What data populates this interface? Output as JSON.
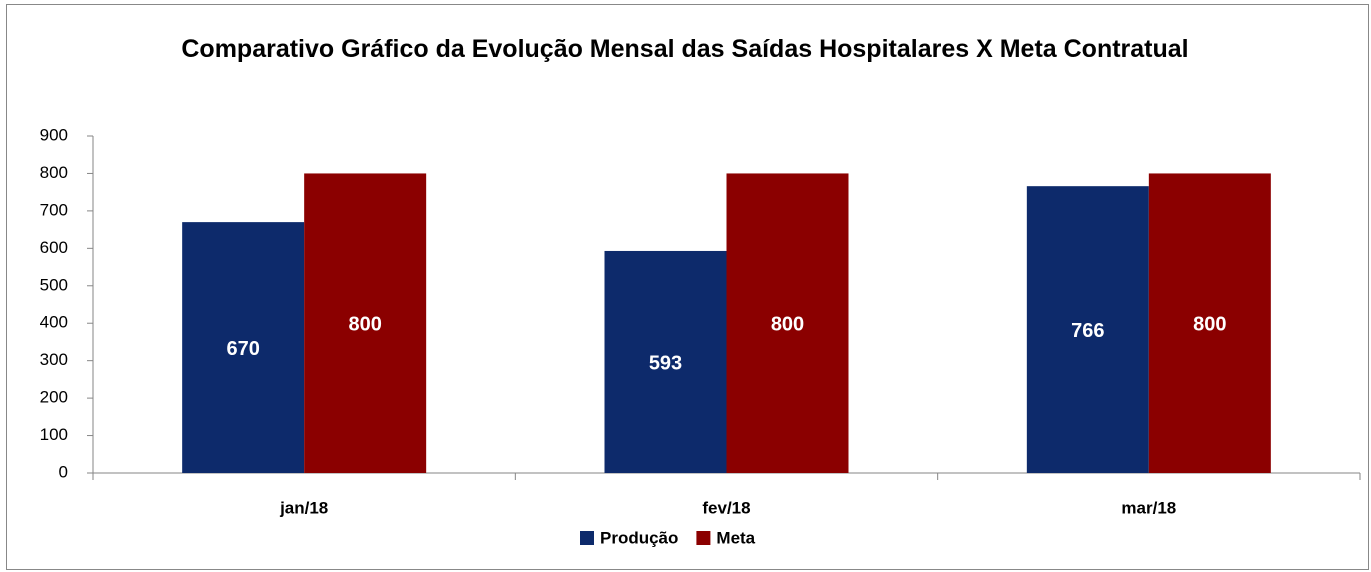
{
  "chart_data": {
    "type": "bar",
    "title": "Comparativo Gráfico da Evolução Mensal das Saídas Hospitalares X Meta Contratual",
    "categories": [
      "jan/18",
      "fev/18",
      "mar/18"
    ],
    "series": [
      {
        "name": "Produção",
        "color": "#0d2a6b",
        "values": [
          670,
          593,
          766
        ]
      },
      {
        "name": "Meta",
        "color": "#8b0000",
        "values": [
          800,
          800,
          800
        ]
      }
    ],
    "ylim": [
      0,
      900
    ],
    "yticks": [
      0,
      100,
      200,
      300,
      400,
      500,
      600,
      700,
      800,
      900
    ],
    "legend": "bottom"
  }
}
